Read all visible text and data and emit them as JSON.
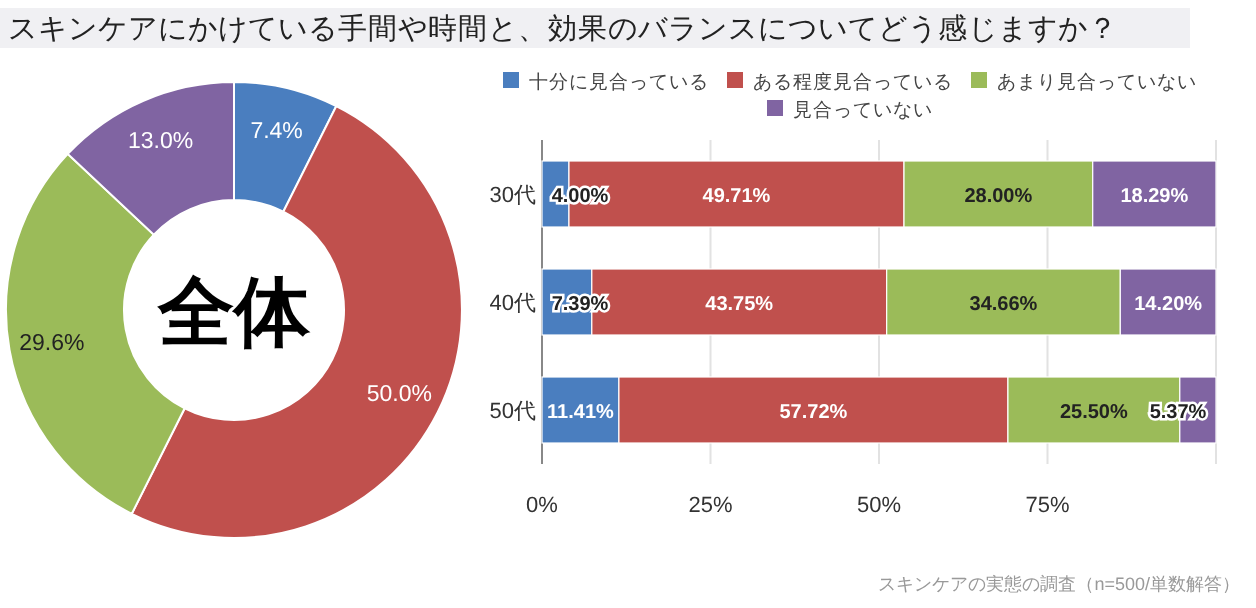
{
  "chart_data": [
    {
      "type": "donut",
      "title": "スキンケアにかけている手間や時間と、効果のバランスについてどう感じますか？",
      "categories": [
        null,
        null,
        null,
        null
      ],
      "values": [
        7.4,
        50.0,
        29.6,
        13.0
      ],
      "colors": [
        "#4a7ebf",
        "#c0504d",
        "#9bbb59",
        "#8064a2"
      ],
      "value_labels": [
        "7.4%",
        "50.0%",
        "29.6%",
        "13.0%"
      ],
      "annotations": [
        "全体"
      ]
    },
    {
      "type": "bar",
      "orientation": "horizontal",
      "stacked": true,
      "categories": [
        "30代",
        "40代",
        "50代"
      ],
      "series": [
        {
          "name": "十分に見合っている",
          "color": "#4a7ebf",
          "values": [
            4.0,
            7.39,
            11.41
          ],
          "value_labels": [
            "4.00%",
            "7.39%",
            "11.41%"
          ]
        },
        {
          "name": "ある程度見合っている",
          "color": "#c0504d",
          "values": [
            49.71,
            43.75,
            57.72
          ],
          "value_labels": [
            "49.71%",
            "43.75%",
            "57.72%"
          ]
        },
        {
          "name": "あまり見合っていない",
          "color": "#9bbb59",
          "values": [
            28.0,
            34.66,
            25.5
          ],
          "value_labels": [
            "28.00%",
            "34.66%",
            "25.50%"
          ]
        },
        {
          "name": "見合っていない",
          "color": "#8064a2",
          "values": [
            18.29,
            14.2,
            5.37
          ],
          "value_labels": [
            "18.29%",
            "14.20%",
            "5.37%"
          ]
        }
      ],
      "xlim": [
        0,
        100
      ],
      "xticks": [
        {
          "value": 0,
          "label": "0%"
        },
        {
          "value": 25,
          "label": "25%"
        },
        {
          "value": 50,
          "label": "50%"
        },
        {
          "value": 75,
          "label": "75%"
        },
        {
          "value": 100,
          "label": null
        }
      ],
      "grid": "x",
      "legend": "top",
      "annotations": [
        "スキンケアの実態の調査（n=500/単数解答）"
      ]
    }
  ]
}
